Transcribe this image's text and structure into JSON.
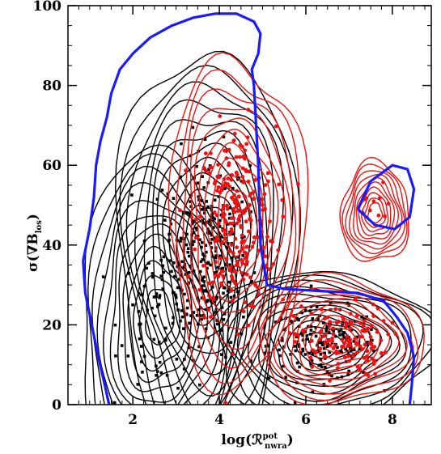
{
  "chart_data": {
    "type": "scatter",
    "title": "",
    "xlabel": "log(ℛ_nwra^pot)",
    "ylabel": "σ(∇B_los)",
    "xlim": [
      0.5,
      8.9
    ],
    "ylim": [
      0,
      100
    ],
    "x_ticks": [
      2,
      4,
      6,
      8
    ],
    "y_ticks": [
      0,
      20,
      40,
      60,
      80,
      100
    ],
    "x_tick_labels": [
      "2",
      "4",
      "6",
      "8"
    ],
    "y_tick_labels": [
      "0",
      "20",
      "40",
      "60",
      "80",
      "100"
    ],
    "grid": false,
    "legend": "none",
    "series": [
      {
        "color": "#000000",
        "clusters": [
          {
            "x": 3.7,
            "y": 38,
            "sx": 0.55,
            "sy": 14,
            "n": 260
          },
          {
            "x": 6.4,
            "y": 15,
            "sx": 0.7,
            "sy": 5,
            "n": 170
          },
          {
            "x": 2.6,
            "y": 22,
            "sx": 0.5,
            "sy": 11,
            "n": 60
          }
        ],
        "contour_levels": 12,
        "outer_boundary_color": "#1a1aff"
      },
      {
        "color": "#ee1111",
        "clusters": [
          {
            "x": 4.4,
            "y": 46,
            "sx": 0.5,
            "sy": 13,
            "n": 240
          },
          {
            "x": 6.8,
            "y": 16,
            "sx": 0.6,
            "sy": 5,
            "n": 120
          },
          {
            "x": 7.6,
            "y": 48,
            "sx": 0.25,
            "sy": 4,
            "n": 10
          }
        ],
        "contour_levels": 10
      }
    ],
    "boundary": {
      "color": "#1a1aff",
      "polyline": [
        [
          1.45,
          0
        ],
        [
          1.35,
          5
        ],
        [
          1.2,
          12
        ],
        [
          1.05,
          20
        ],
        [
          0.9,
          28
        ],
        [
          0.85,
          36
        ],
        [
          1.0,
          44
        ],
        [
          1.1,
          52
        ],
        [
          1.15,
          60
        ],
        [
          1.25,
          66
        ],
        [
          1.4,
          72
        ],
        [
          1.5,
          78
        ],
        [
          1.7,
          84
        ],
        [
          2.0,
          88
        ],
        [
          2.4,
          92
        ],
        [
          2.9,
          95
        ],
        [
          3.4,
          97
        ],
        [
          3.9,
          98
        ],
        [
          4.4,
          98
        ],
        [
          4.8,
          96
        ],
        [
          4.95,
          93
        ],
        [
          4.9,
          88
        ],
        [
          4.75,
          84
        ],
        [
          4.8,
          80
        ],
        [
          4.9,
          60
        ],
        [
          4.95,
          40
        ],
        [
          5.1,
          30
        ],
        [
          5.5,
          29
        ],
        [
          6.3,
          28.5
        ],
        [
          7.2,
          28
        ],
        [
          7.8,
          26
        ],
        [
          8.1,
          22
        ],
        [
          8.35,
          18
        ],
        [
          8.5,
          12
        ],
        [
          8.45,
          5
        ],
        [
          8.4,
          0
        ]
      ]
    },
    "boundary_island": {
      "color": "#1a1aff",
      "polyline": [
        [
          7.2,
          49
        ],
        [
          7.5,
          56
        ],
        [
          8.0,
          60
        ],
        [
          8.35,
          59
        ],
        [
          8.5,
          54
        ],
        [
          8.4,
          47
        ],
        [
          8.05,
          44
        ],
        [
          7.6,
          45
        ],
        [
          7.2,
          49
        ]
      ]
    }
  }
}
